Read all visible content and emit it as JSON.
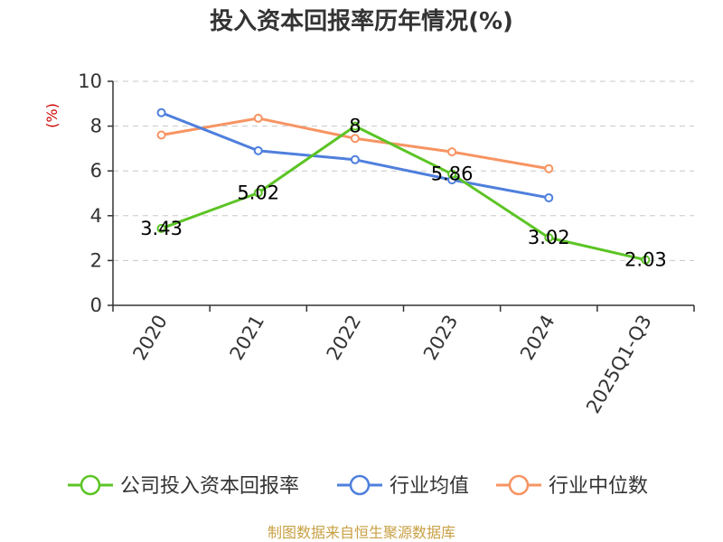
{
  "chart_data": {
    "type": "line",
    "title": "投入资本回报率历年情况(%)",
    "ylabel": "(%)",
    "xlabel": "",
    "categories": [
      "2020",
      "2021",
      "2022",
      "2023",
      "2024",
      "2025Q1-Q3"
    ],
    "ylim": [
      0,
      10
    ],
    "yticks": [
      0,
      2,
      4,
      6,
      8,
      10
    ],
    "grid": true,
    "legend_position": "bottom",
    "series": [
      {
        "name": "公司投入资本回报率",
        "color": "#5cc425",
        "values": [
          3.43,
          5.02,
          8,
          5.86,
          3.02,
          2.03
        ],
        "labels": [
          "3.43",
          "5.02",
          "8",
          "5.86",
          "3.02",
          "2.03"
        ]
      },
      {
        "name": "行业均值",
        "color": "#4f7fdd",
        "values": [
          8.6,
          6.9,
          6.5,
          5.6,
          4.8,
          null
        ]
      },
      {
        "name": "行业中位数",
        "color": "#f79462",
        "values": [
          7.6,
          8.35,
          7.45,
          6.85,
          6.1,
          null
        ]
      }
    ]
  },
  "source": "制图数据来自恒生聚源数据库"
}
